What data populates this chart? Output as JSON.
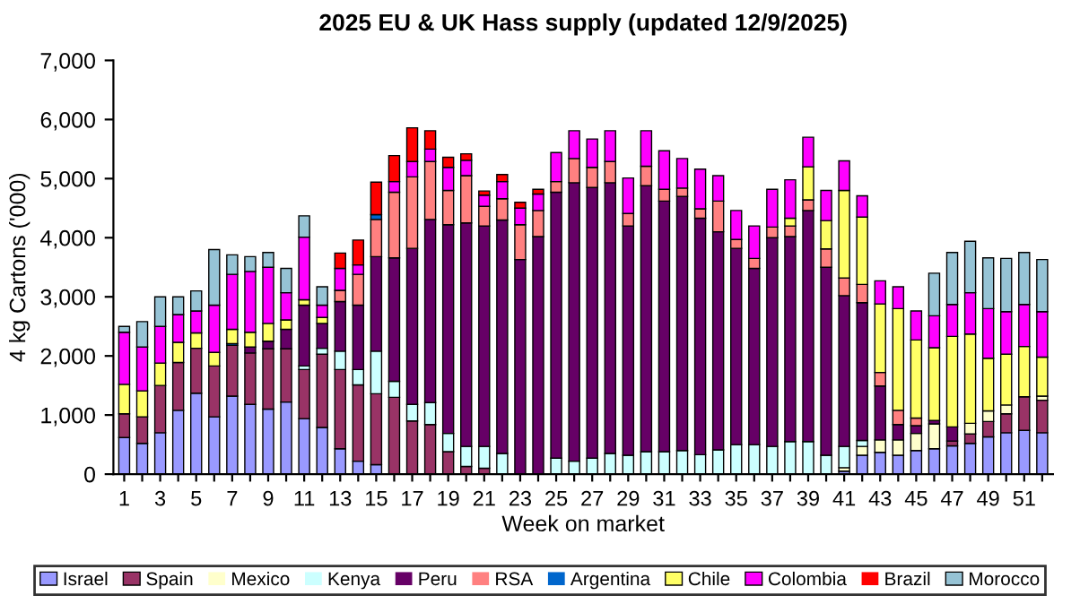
{
  "chart_data": {
    "type": "bar",
    "stacked": true,
    "title": "2025 EU & UK Hass supply (updated 12/9/2025)",
    "xlabel": "Week on market",
    "ylabel": "4 kg Cartons ('000)",
    "categories": [
      "1",
      null,
      "3",
      null,
      "5",
      null,
      "7",
      null,
      "9",
      null,
      "11",
      null,
      "13",
      null,
      "15",
      null,
      "17",
      null,
      "19",
      null,
      "21",
      null,
      "23",
      null,
      "25",
      null,
      "27",
      null,
      "29",
      null,
      "31",
      null,
      "33",
      null,
      "35",
      null,
      "37",
      null,
      "39",
      null,
      "41",
      null,
      "43",
      null,
      "45",
      null,
      "47",
      null,
      "49",
      null,
      "51",
      null
    ],
    "ylim": [
      0,
      7000
    ],
    "yticks": [
      {
        "value": 0,
        "label": "0"
      },
      {
        "value": 1000,
        "label": "1,000"
      },
      {
        "value": 2000,
        "label": "2,000"
      },
      {
        "value": 3000,
        "label": "3,000"
      },
      {
        "value": 4000,
        "label": "4,000"
      },
      {
        "value": 5000,
        "label": "5,000"
      },
      {
        "value": 6000,
        "label": "6,000"
      },
      {
        "value": 7000,
        "label": "7,000"
      }
    ],
    "grid": false,
    "legend": "bottom",
    "series": [
      {
        "name": "Israel",
        "color": "#9999ff",
        "values": [
          620,
          520,
          700,
          1080,
          1370,
          970,
          1320,
          1180,
          1100,
          1220,
          940,
          790,
          430,
          220,
          160,
          0,
          0,
          0,
          0,
          0,
          0,
          0,
          0,
          0,
          0,
          0,
          0,
          0,
          0,
          0,
          0,
          0,
          0,
          0,
          0,
          0,
          0,
          0,
          0,
          0,
          50,
          320,
          370,
          320,
          400,
          430,
          480,
          520,
          630,
          700,
          740,
          700
        ]
      },
      {
        "name": "Spain",
        "color": "#993366",
        "values": [
          400,
          450,
          800,
          810,
          760,
          860,
          860,
          870,
          1020,
          900,
          830,
          1240,
          1340,
          1290,
          1200,
          1300,
          900,
          840,
          380,
          130,
          100,
          null,
          0,
          0,
          0,
          0,
          0,
          0,
          0,
          0,
          0,
          0,
          0,
          0,
          0,
          0,
          0,
          0,
          0,
          0,
          0,
          0,
          0,
          0,
          0,
          0,
          80,
          160,
          260,
          320,
          570,
          550
        ]
      },
      {
        "name": "Mexico",
        "color": "#ffffcc",
        "values": [
          0,
          0,
          0,
          0,
          0,
          0,
          0,
          0,
          0,
          0,
          0,
          0,
          0,
          0,
          0,
          0,
          0,
          0,
          0,
          0,
          0,
          0,
          0,
          0,
          0,
          0,
          0,
          0,
          0,
          0,
          0,
          0,
          0,
          0,
          0,
          0,
          0,
          0,
          0,
          0,
          60,
          150,
          210,
          260,
          290,
          420,
          0,
          180,
          180,
          150,
          null,
          70
        ]
      },
      {
        "name": "Kenya",
        "color": "#ccffff",
        "values": [
          0,
          0,
          0,
          0,
          0,
          0,
          0,
          0,
          0,
          0,
          60,
          100,
          310,
          260,
          720,
          270,
          280,
          370,
          310,
          340,
          370,
          350,
          0,
          0,
          270,
          220,
          270,
          350,
          320,
          380,
          380,
          400,
          330,
          410,
          500,
          500,
          470,
          550,
          550,
          320,
          360,
          100,
          0,
          0,
          0,
          0,
          0,
          0,
          0,
          0,
          0,
          0
        ]
      },
      {
        "name": "Peru",
        "color": "#660066",
        "values": [
          0,
          0,
          0,
          0,
          0,
          0,
          0,
          100,
          130,
          330,
          1030,
          420,
          840,
          1090,
          1600,
          2090,
          2640,
          3100,
          3530,
          3780,
          3730,
          3950,
          3630,
          4020,
          4500,
          4710,
          4580,
          4580,
          3880,
          4500,
          4240,
          4300,
          4000,
          3690,
          3320,
          2980,
          3530,
          3470,
          3910,
          3180,
          2550,
          2330,
          910,
          260,
          130,
          60,
          240,
          0,
          0,
          0,
          0,
          0
        ]
      },
      {
        "name": "RSA",
        "color": "#ff8080",
        "values": [
          0,
          0,
          0,
          0,
          0,
          0,
          0,
          0,
          0,
          0,
          0,
          0,
          190,
          520,
          630,
          1110,
          1210,
          980,
          580,
          800,
          330,
          360,
          590,
          440,
          180,
          410,
          340,
          360,
          210,
          330,
          200,
          140,
          160,
          520,
          150,
          170,
          180,
          180,
          180,
          310,
          300,
          310,
          230,
          240,
          130,
          0,
          0,
          0,
          0,
          0,
          0,
          0
        ]
      },
      {
        "name": "Argentina",
        "color": "#0066cc",
        "values": [
          0,
          0,
          0,
          0,
          0,
          0,
          30,
          0,
          0,
          0,
          0,
          0,
          0,
          0,
          80,
          0,
          0,
          0,
          0,
          0,
          0,
          0,
          0,
          0,
          0,
          0,
          0,
          0,
          0,
          0,
          0,
          0,
          0,
          0,
          0,
          0,
          0,
          0,
          0,
          0,
          0,
          0,
          0,
          0,
          0,
          0,
          0,
          0,
          0,
          0,
          0,
          0
        ]
      },
      {
        "name": "Chile",
        "color": "#ffff66",
        "values": [
          500,
          440,
          380,
          340,
          260,
          230,
          240,
          250,
          300,
          160,
          90,
          100,
          0,
          null,
          0,
          0,
          0,
          0,
          0,
          0,
          0,
          0,
          0,
          0,
          0,
          0,
          0,
          0,
          0,
          0,
          0,
          0,
          0,
          0,
          0,
          0,
          0,
          130,
          560,
          480,
          1480,
          1140,
          1160,
          1720,
          1320,
          1230,
          1530,
          1510,
          890,
          860,
          850,
          660
        ]
      },
      {
        "name": "Colombia",
        "color": "#ff00ff",
        "values": [
          880,
          740,
          620,
          470,
          370,
          800,
          930,
          1030,
          950,
          460,
          1060,
          210,
          370,
          160,
          0,
          180,
          260,
          210,
          390,
          260,
          190,
          290,
          280,
          280,
          490,
          470,
          480,
          520,
          600,
          600,
          650,
          500,
          670,
          430,
          490,
          550,
          640,
          650,
          500,
          510,
          500,
          360,
          390,
          370,
          490,
          540,
          540,
          700,
          840,
          720,
          710,
          770
        ]
      },
      {
        "name": "Brazil",
        "color": "#ff0000",
        "values": [
          0,
          0,
          0,
          0,
          0,
          0,
          0,
          0,
          0,
          0,
          0,
          0,
          260,
          420,
          550,
          440,
          570,
          310,
          170,
          110,
          70,
          120,
          100,
          80,
          0,
          0,
          0,
          0,
          0,
          0,
          0,
          0,
          0,
          0,
          0,
          0,
          0,
          0,
          0,
          0,
          0,
          0,
          0,
          0,
          0,
          0,
          0,
          0,
          0,
          0,
          0,
          0
        ]
      },
      {
        "name": "Morocco",
        "color": "#96c3d5",
        "values": [
          100,
          430,
          500,
          300,
          340,
          940,
          330,
          250,
          250,
          410,
          360,
          310,
          0,
          0,
          0,
          0,
          0,
          0,
          0,
          0,
          0,
          0,
          0,
          0,
          0,
          0,
          0,
          0,
          0,
          0,
          0,
          0,
          0,
          0,
          0,
          0,
          0,
          0,
          0,
          0,
          0,
          0,
          0,
          0,
          0,
          720,
          880,
          870,
          860,
          900,
          880,
          880
        ]
      }
    ]
  }
}
